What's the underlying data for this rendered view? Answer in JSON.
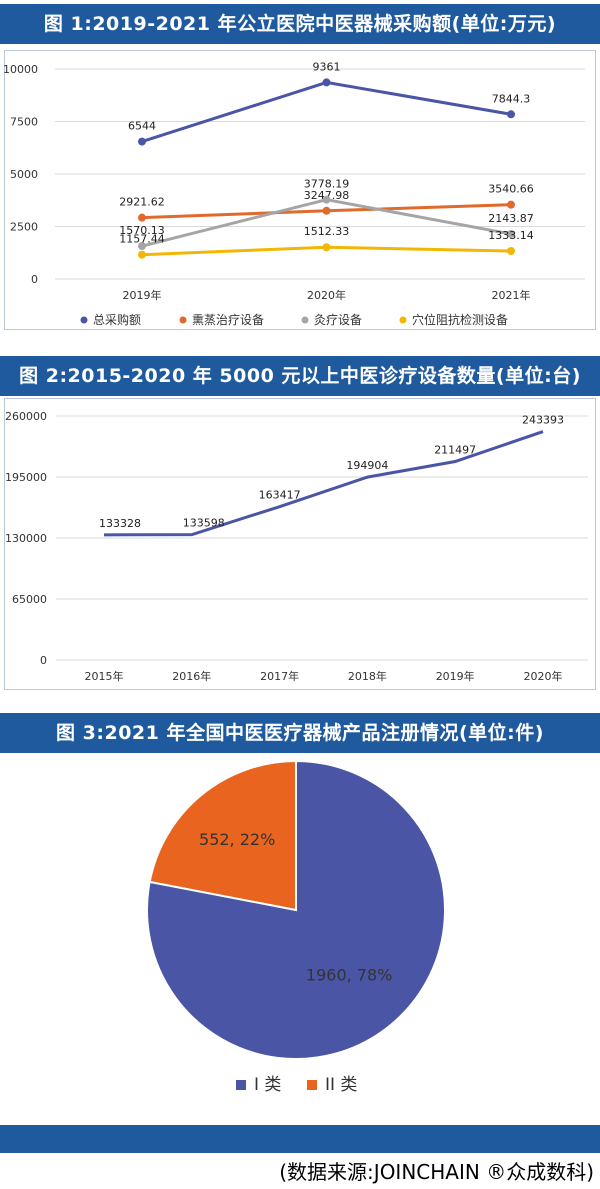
{
  "colors": {
    "banner": "#1f5a9e",
    "series_total": "#4a55a6",
    "series_fumigation": "#e06a2c",
    "series_moxibustion": "#a5a5a5",
    "series_acupoint": "#f2b705",
    "pie_class1": "#4a55a6",
    "pie_class2": "#e8641f"
  },
  "chart_data": [
    {
      "type": "line",
      "title": "图 1:2019-2021 年公立医院中医器械采购额(单位:万元)",
      "categories": [
        "2019年",
        "2020年",
        "2021年"
      ],
      "yticks": [
        "0",
        "2500",
        "5000",
        "7500",
        "10000"
      ],
      "ylim": [
        0,
        10000
      ],
      "grid": true,
      "legend_position": "bottom",
      "series": [
        {
          "name": "总采购额",
          "values": [
            6544,
            9361,
            7844.3
          ],
          "labels": [
            "6544",
            "9361",
            "7844.3"
          ]
        },
        {
          "name": "熏蒸治疗设备",
          "values": [
            2921.62,
            3247.98,
            3540.66
          ],
          "labels": [
            "2921.62",
            "3247.98",
            "3540.66"
          ]
        },
        {
          "name": "灸疗设备",
          "values": [
            1570.13,
            3778.19,
            2143.87
          ],
          "labels": [
            "1570.13",
            "3778.19",
            "2143.87"
          ]
        },
        {
          "name": "穴位阻抗检测设备",
          "values": [
            1157.44,
            1512.33,
            1333.14
          ],
          "labels": [
            "1157.44",
            "1512.33",
            "1333.14"
          ]
        }
      ]
    },
    {
      "type": "line",
      "title": "图 2:2015-2020 年 5000 元以上中医诊疗设备数量(单位:台)",
      "categories": [
        "2015年",
        "2016年",
        "2017年",
        "2018年",
        "2019年",
        "2020年"
      ],
      "yticks": [
        "0",
        "65000",
        "130000",
        "195000",
        "260000"
      ],
      "ylim": [
        0,
        260000
      ],
      "grid": true,
      "series": [
        {
          "values": [
            133328,
            133598,
            163417,
            194904,
            211497,
            243393
          ],
          "labels": [
            "133328",
            "133598",
            "163417",
            "194904",
            "211497",
            "243393"
          ]
        }
      ]
    },
    {
      "type": "pie",
      "title": "图 3:2021 年全国中医医疗器械产品注册情况(单位:件)",
      "legend_position": "bottom",
      "slices": [
        {
          "name": "I 类",
          "value": 1960,
          "label": "1960, 78%"
        },
        {
          "name": "II 类",
          "value": 552,
          "label": "552, 22%"
        }
      ]
    }
  ],
  "source": "(数据来源:JOINCHAIN ®众成数科)"
}
